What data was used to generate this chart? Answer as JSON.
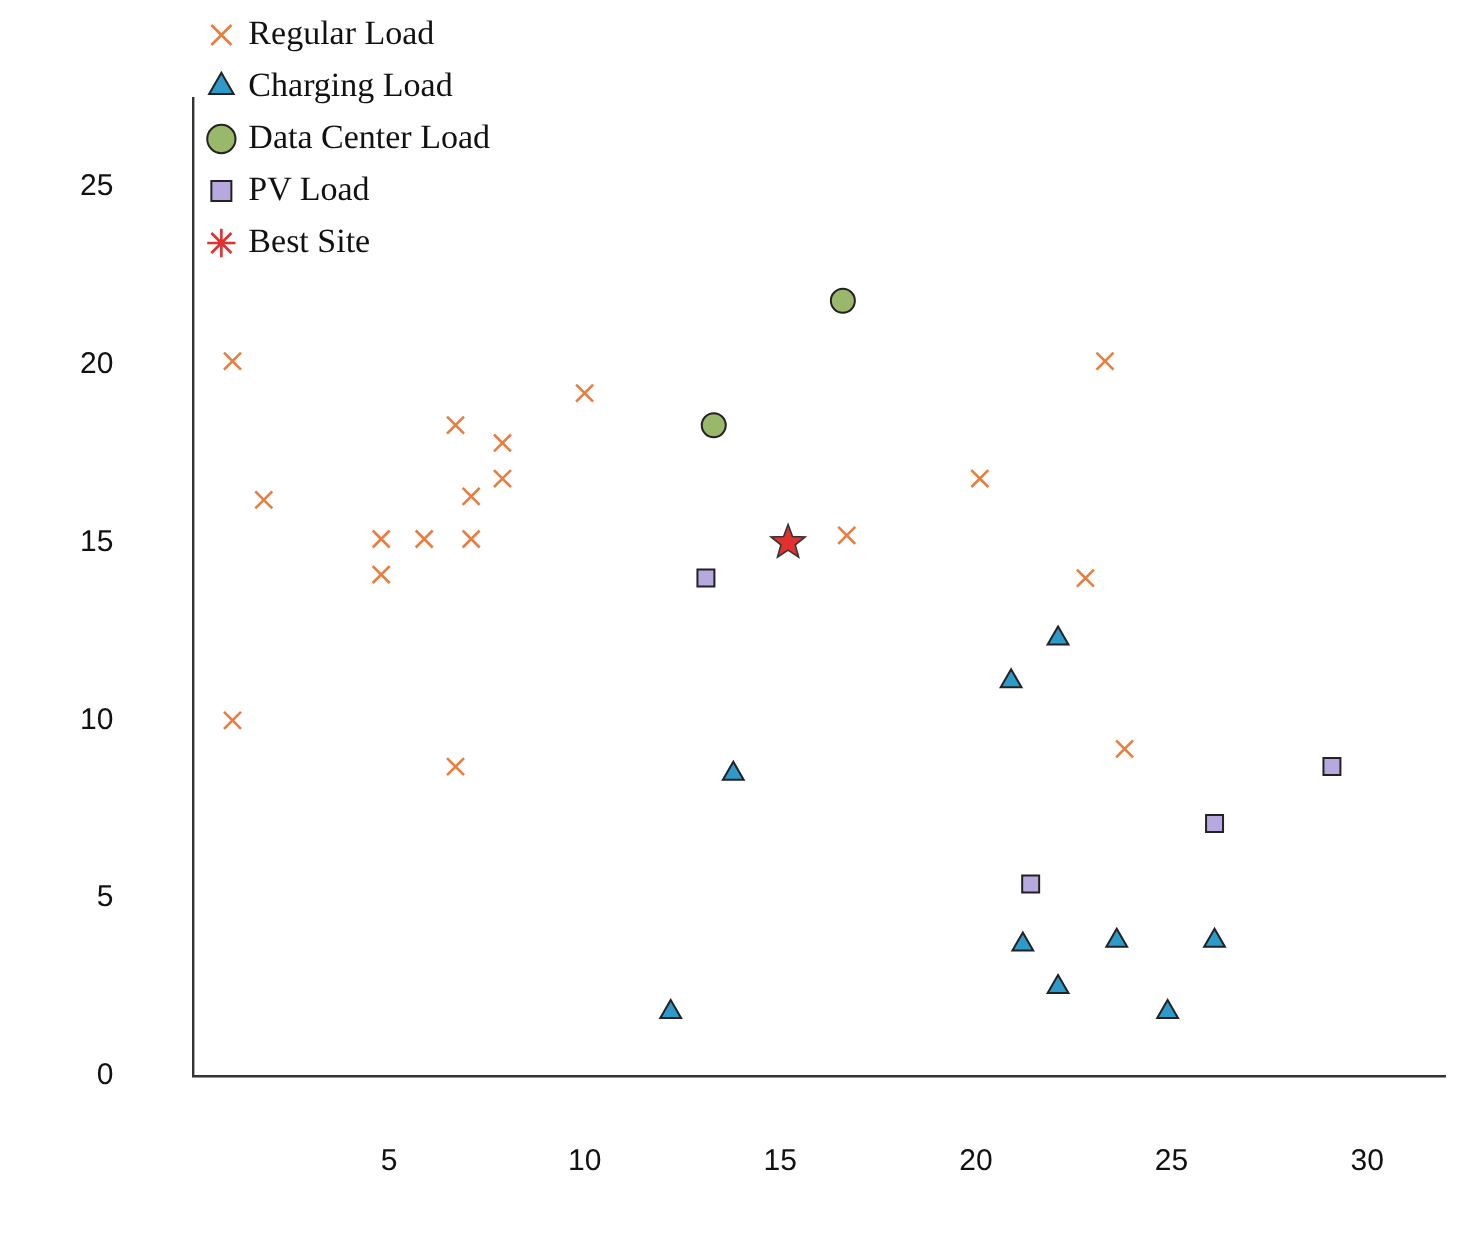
{
  "chart_data": {
    "type": "scatter",
    "xlim": [
      0,
      32
    ],
    "xticks": [
      5,
      10,
      15,
      20,
      25,
      30
    ],
    "ylim": [
      0,
      27.5
    ],
    "yticks": [
      0,
      5,
      10,
      15,
      20,
      25
    ],
    "grid": false,
    "legend": "top left",
    "series": [
      {
        "name": "Regular Load",
        "color": "#e87d3e",
        "marker": "cross",
        "x": [
          1.0,
          1.8,
          4.8,
          4.8,
          5.9,
          6.7,
          6.7,
          7.1,
          7.1,
          7.9,
          7.9,
          10.0,
          1.0,
          16.7,
          20.1,
          23.3,
          22.8,
          23.8
        ],
        "values": [
          20.1,
          16.2,
          15.1,
          14.1,
          15.1,
          18.3,
          8.7,
          16.3,
          15.1,
          17.8,
          16.8,
          19.2,
          10.0,
          15.2,
          16.8,
          20.1,
          14.0,
          9.2
        ]
      },
      {
        "name": "Charging Load",
        "color": "#2e9ac9",
        "marker": "triangle",
        "x": [
          12.2,
          13.8,
          20.9,
          22.1,
          21.2,
          22.1,
          23.6,
          24.9,
          26.1
        ],
        "values": [
          1.8,
          8.5,
          11.1,
          12.3,
          3.7,
          2.5,
          3.8,
          1.8,
          3.8
        ]
      },
      {
        "name": "Data Center Load",
        "color": "#9ab86a",
        "marker": "circle",
        "x": [
          13.3,
          16.6
        ],
        "values": [
          18.3,
          21.8
        ]
      },
      {
        "name": "PV Load",
        "color": "#b7a9e0",
        "marker": "square",
        "x": [
          13.1,
          21.4,
          26.1,
          29.1
        ],
        "values": [
          14.0,
          5.4,
          7.1,
          8.7
        ]
      },
      {
        "name": "Best Site",
        "color": "#e03030",
        "marker": "star",
        "x": [
          15.2
        ],
        "values": [
          15.0
        ]
      }
    ]
  }
}
